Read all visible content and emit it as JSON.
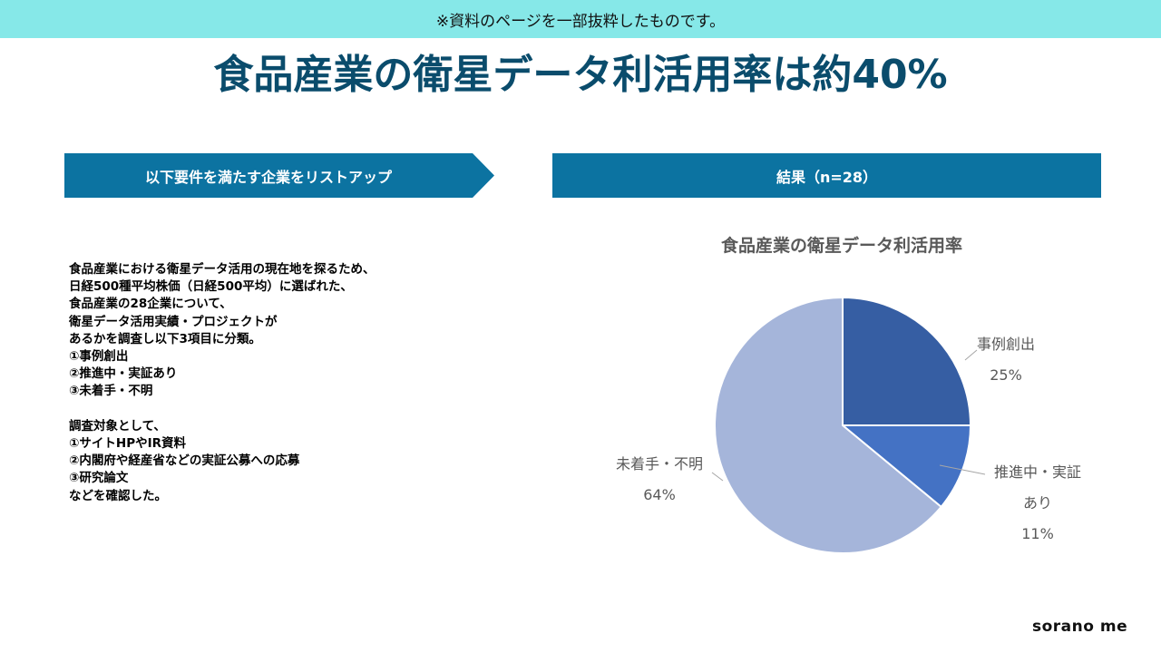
{
  "notice": "※資料のページを一部抜粋したものです。",
  "title": "食品産業の衛星データ利活用率は約40%",
  "left_header": "以下要件を満たす企業をリストアップ",
  "right_header": "結果（n=28）",
  "description": {
    "paragraph1": [
      "食品産業における衛星データ活用の現在地を探るため、",
      "日経500種平均株価（日経500平均）に選ばれた、",
      "食品産業の28企業について、",
      "衛星データ活用実績・プロジェクトが",
      "あるかを調査し以下3項目に分類。",
      "①事例創出",
      "②推進中・実証あり",
      "③未着手・不明"
    ],
    "paragraph2": [
      "調査対象として、",
      "①サイトHPやIR資料",
      "②内閣府や経産省などの実証公募への応募",
      "③研究論文",
      "などを確認した。"
    ]
  },
  "logo": "sorano me",
  "colors": {
    "title": "#0a4c6c",
    "header": "#0c73a1",
    "notice_bar": "#86e8e8",
    "slice_1": "#365ea3",
    "slice_2": "#4472c4",
    "slice_3": "#a5b5da",
    "chart_text": "#595959"
  },
  "chart_data": {
    "type": "pie",
    "title": "食品産業の衛星データ利活用率",
    "slices": [
      {
        "label": "事例創出",
        "value": 25,
        "value_label": "25%",
        "color": "#365ea3"
      },
      {
        "label": "推進中・実証あり",
        "label_lines": [
          "推進中・実証",
          "あり"
        ],
        "value": 11,
        "value_label": "11%",
        "color": "#4472c4"
      },
      {
        "label": "未着手・不明",
        "value": 64,
        "value_label": "64%",
        "color": "#a5b5da"
      }
    ],
    "start_angle_deg": 0,
    "direction": "clockwise",
    "legend": "none",
    "data_labels": "outside"
  }
}
